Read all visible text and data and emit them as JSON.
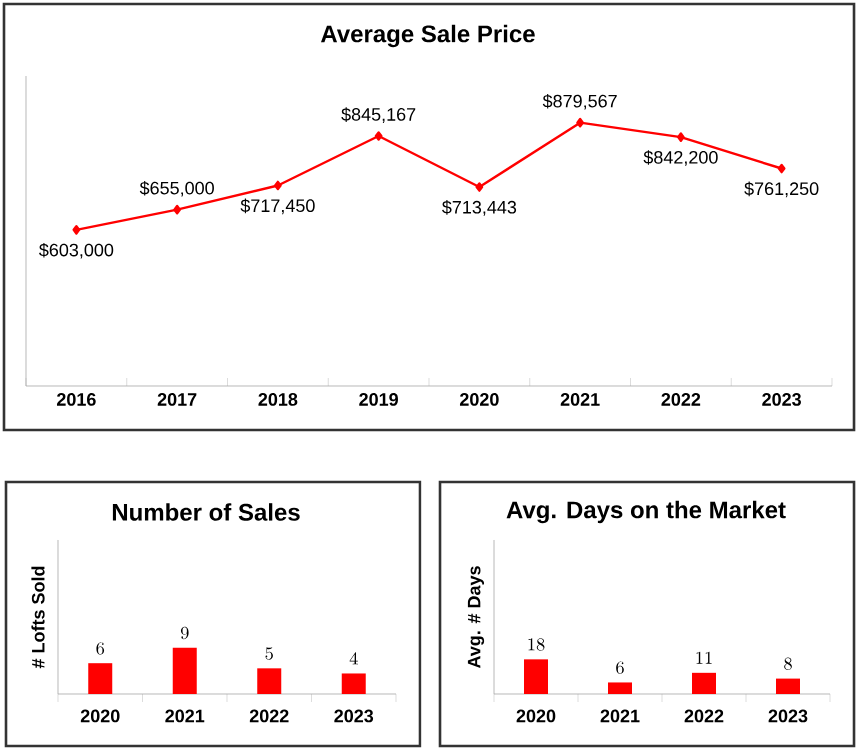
{
  "chart_data": [
    {
      "type": "line",
      "title": "Average Sale Price",
      "categories": [
        "2016",
        "2017",
        "2018",
        "2019",
        "2020",
        "2021",
        "2022",
        "2023"
      ],
      "values": [
        603000,
        655000,
        717450,
        845167,
        713443,
        879567,
        842200,
        761250
      ],
      "value_labels": [
        "$603,000",
        "$655,000",
        "$717,450",
        "$845,167",
        "$713,443",
        "$879,567",
        "$842,200",
        "$761,250"
      ],
      "color": "#ff0000",
      "marker": "diamond",
      "ylim": [
        200000,
        1000000
      ],
      "tick_labels": "x"
    },
    {
      "type": "bar",
      "title": "Number of Sales",
      "ylabel": "# Lofts Sold",
      "categories": [
        "2020",
        "2021",
        "2022",
        "2023"
      ],
      "values": [
        6,
        9,
        5,
        4
      ],
      "color": "#ff0000",
      "data_labels": true,
      "ylim": [
        0,
        30
      ],
      "tick_labels": "x"
    },
    {
      "type": "bar",
      "title": "Avg. Days on the Market",
      "ylabel": "Avg. # Days",
      "categories": [
        "2020",
        "2021",
        "2022",
        "2023"
      ],
      "values": [
        18,
        6,
        11,
        8
      ],
      "color": "#ff0000",
      "data_labels": true,
      "ylim": [
        0,
        80
      ],
      "tick_labels": "x"
    }
  ]
}
